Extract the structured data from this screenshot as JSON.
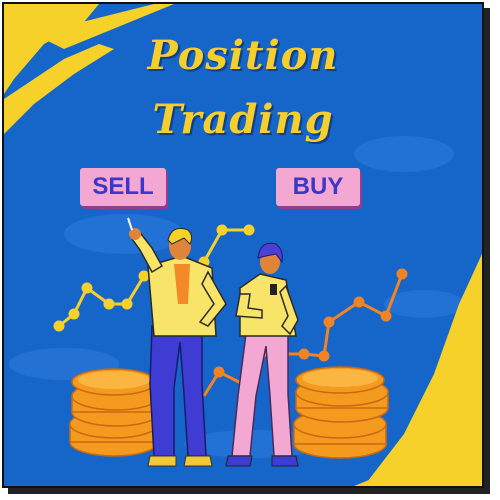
{
  "title": {
    "line1": "Position",
    "line2": "Trading"
  },
  "tags": {
    "sell": "SELL",
    "buy": "BUY"
  },
  "colors": {
    "background": "#1665c9",
    "title": "#f6cf2c",
    "tag_bg": "#f3a8d3",
    "tag_text": "#3b37c8",
    "coin": "#f49a1f",
    "accent_yellow": "#f5d12a"
  }
}
